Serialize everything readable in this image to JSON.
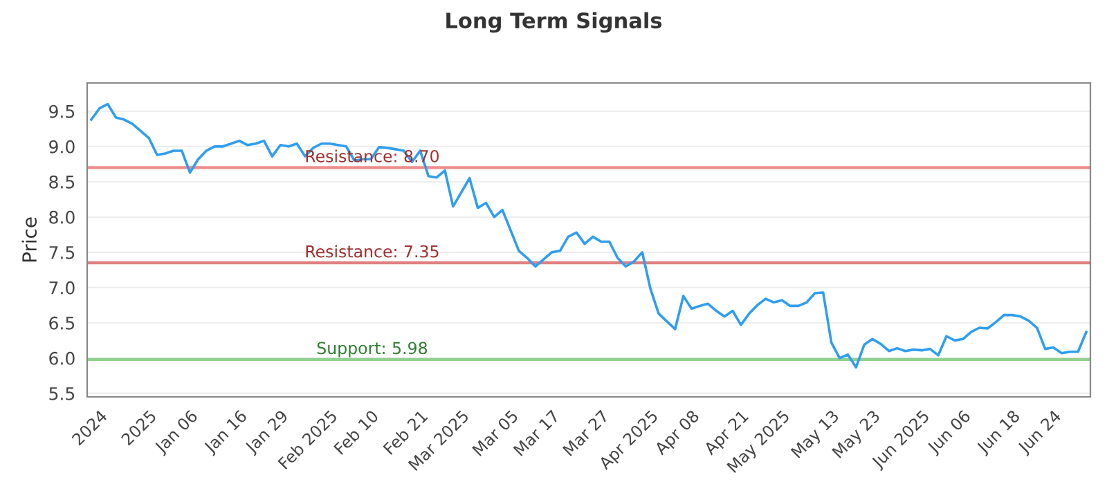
{
  "chart_data": {
    "type": "line",
    "title": "Long Term Signals",
    "ylabel": "Price",
    "categories": [
      null,
      "2024",
      null,
      null,
      null,
      null,
      null,
      "2025",
      null,
      null,
      null,
      null,
      "Jan 06",
      null,
      null,
      null,
      null,
      null,
      "Jan 16",
      null,
      null,
      null,
      null,
      "Jan 29",
      null,
      null,
      null,
      null,
      null,
      "Feb 2025",
      null,
      null,
      null,
      null,
      "Feb 10",
      null,
      null,
      null,
      null,
      null,
      "Feb 21",
      null,
      null,
      null,
      null,
      "Mar 2025",
      null,
      null,
      null,
      null,
      null,
      "Mar 05",
      null,
      null,
      null,
      null,
      "Mar 17",
      null,
      null,
      null,
      null,
      null,
      "Mar 27",
      null,
      null,
      null,
      null,
      null,
      "Apr 2025",
      null,
      null,
      null,
      null,
      "Apr 08",
      null,
      null,
      null,
      null,
      null,
      "Apr 21",
      null,
      null,
      null,
      null,
      "May 2025",
      null,
      null,
      null,
      null,
      null,
      "May 13",
      null,
      null,
      null,
      null,
      "May 23",
      null,
      null,
      null,
      null,
      null,
      "Jun 2025",
      null,
      null,
      null,
      null,
      "Jun 06",
      null,
      null,
      null,
      null,
      null,
      "Jun 18",
      null,
      null,
      null,
      null,
      "Jun 24",
      null,
      null,
      null,
      null
    ],
    "series": [
      {
        "color": "#2f9ef0",
        "values": [
          9.38,
          9.54,
          9.6,
          9.41,
          9.38,
          9.32,
          9.22,
          9.12,
          8.88,
          8.9,
          8.94,
          8.94,
          8.63,
          8.82,
          8.94,
          9.0,
          9.0,
          9.04,
          9.08,
          9.02,
          9.04,
          9.08,
          8.86,
          9.02,
          9.0,
          9.04,
          8.86,
          8.98,
          9.04,
          9.04,
          9.02,
          9.0,
          8.8,
          8.82,
          8.82,
          8.99,
          8.98,
          8.96,
          8.94,
          8.78,
          8.94,
          8.58,
          8.56,
          8.66,
          8.15,
          8.35,
          8.55,
          8.13,
          8.2,
          8.0,
          8.1,
          7.81,
          7.52,
          7.42,
          7.3,
          7.4,
          7.5,
          7.52,
          7.72,
          7.78,
          7.62,
          7.72,
          7.65,
          7.65,
          7.42,
          7.3,
          7.37,
          7.5,
          6.98,
          6.63,
          6.52,
          6.41,
          6.88,
          6.7,
          6.74,
          6.77,
          6.67,
          6.59,
          6.67,
          6.47,
          6.63,
          6.75,
          6.84,
          6.79,
          6.82,
          6.74,
          6.74,
          6.79,
          6.92,
          6.93,
          6.22,
          6.0,
          6.05,
          5.87,
          6.19,
          6.27,
          6.2,
          6.1,
          6.14,
          6.1,
          6.12,
          6.11,
          6.13,
          6.04,
          6.31,
          6.25,
          6.27,
          6.37,
          6.43,
          6.42,
          6.51,
          6.61,
          6.61,
          6.59,
          6.53,
          6.43,
          6.13,
          6.15,
          6.07,
          6.09,
          6.09,
          6.37
        ]
      }
    ],
    "ylim": [
      5.45,
      9.9
    ],
    "yticks": [
      {
        "value": 5.5,
        "label": "5.5"
      },
      {
        "value": 6.0,
        "label": "6.0"
      },
      {
        "value": 6.5,
        "label": "6.5"
      },
      {
        "value": 7.0,
        "label": "7.0"
      },
      {
        "value": 7.5,
        "label": "7.5"
      },
      {
        "value": 8.0,
        "label": "8.0"
      },
      {
        "value": 8.5,
        "label": "8.5"
      },
      {
        "value": 9.0,
        "label": "9.0"
      },
      {
        "value": 9.5,
        "label": "9.5"
      }
    ],
    "ref_lines": [
      {
        "axis": "y",
        "value": 8.7,
        "label": "Resistance: 8.70",
        "color": "#f08c8c"
      },
      {
        "axis": "y",
        "value": 7.35,
        "label": "Resistance: 7.35",
        "color": "#e08080"
      },
      {
        "axis": "y",
        "value": 5.98,
        "label": "Support: 5.98",
        "color": "#90d090"
      }
    ],
    "grid": "y",
    "marker": "none",
    "line_style": "solid"
  }
}
